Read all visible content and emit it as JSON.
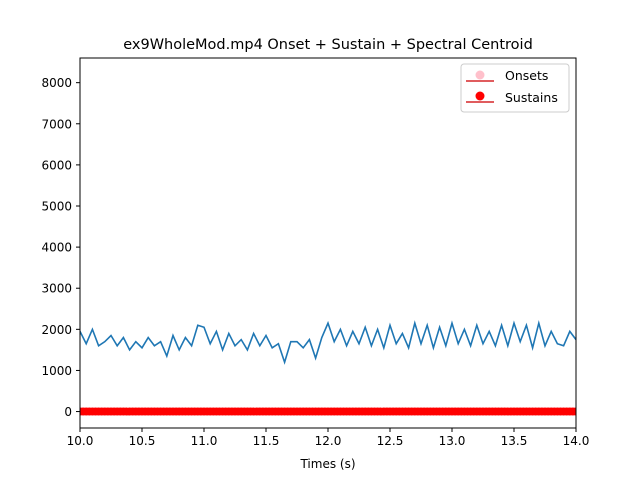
{
  "chart_data": {
    "type": "line",
    "title": "ex9WholeMod.mp4 Onset + Sustain + Spectral Centroid",
    "xlabel": "Times (s)",
    "ylabel": "",
    "xlim": [
      10.0,
      14.0
    ],
    "ylim": [
      -400,
      8600
    ],
    "x_ticks": [
      "10.0",
      "10.5",
      "11.0",
      "11.5",
      "12.0",
      "12.5",
      "13.0",
      "13.5",
      "14.0"
    ],
    "y_ticks": [
      "0",
      "1000",
      "2000",
      "3000",
      "4000",
      "5000",
      "6000",
      "7000",
      "8000"
    ],
    "x_tick_values": [
      10.0,
      10.5,
      11.0,
      11.5,
      12.0,
      12.5,
      13.0,
      13.5,
      14.0
    ],
    "y_tick_values": [
      0,
      1000,
      2000,
      3000,
      4000,
      5000,
      6000,
      7000,
      8000
    ],
    "grid": false,
    "legend_position": "top-right",
    "legend": [
      {
        "label": "Onsets",
        "color": "#ffc0cb",
        "marker": "circle-stem"
      },
      {
        "label": "Sustains",
        "color": "#ff0000",
        "marker": "circle-stem"
      }
    ],
    "series": [
      {
        "type": "line",
        "color": "#1f77b4",
        "x": [
          10.0,
          10.05,
          10.1,
          10.15,
          10.2,
          10.25,
          10.3,
          10.35,
          10.4,
          10.45,
          10.5,
          10.55,
          10.6,
          10.65,
          10.7,
          10.75,
          10.8,
          10.85,
          10.9,
          10.95,
          11.0,
          11.05,
          11.1,
          11.15,
          11.2,
          11.25,
          11.3,
          11.35,
          11.4,
          11.45,
          11.5,
          11.55,
          11.6,
          11.65,
          11.7,
          11.75,
          11.8,
          11.85,
          11.9,
          11.95,
          12.0,
          12.05,
          12.1,
          12.15,
          12.2,
          12.25,
          12.3,
          12.35,
          12.4,
          12.45,
          12.5,
          12.55,
          12.6,
          12.65,
          12.7,
          12.75,
          12.8,
          12.85,
          12.9,
          12.95,
          13.0,
          13.05,
          13.1,
          13.15,
          13.2,
          13.25,
          13.3,
          13.35,
          13.4,
          13.45,
          13.5,
          13.55,
          13.6,
          13.65,
          13.7,
          13.75,
          13.8,
          13.85,
          13.9,
          13.95,
          14.0
        ],
        "y": [
          1950,
          1650,
          2000,
          1600,
          1700,
          1850,
          1600,
          1800,
          1500,
          1700,
          1550,
          1800,
          1600,
          1700,
          1350,
          1850,
          1500,
          1800,
          1600,
          2100,
          2050,
          1650,
          1950,
          1500,
          1900,
          1600,
          1750,
          1500,
          1900,
          1600,
          1850,
          1550,
          1650,
          1200,
          1700,
          1700,
          1550,
          1750,
          1300,
          1800,
          2150,
          1700,
          2000,
          1600,
          1950,
          1650,
          2050,
          1600,
          2000,
          1550,
          2100,
          1650,
          1900,
          1550,
          2150,
          1650,
          2100,
          1550,
          2050,
          1600,
          2150,
          1650,
          2000,
          1600,
          2100,
          1650,
          1950,
          1600,
          2100,
          1600,
          2150,
          1700,
          2100,
          1550,
          2150,
          1600,
          1950,
          1650,
          1600,
          1950,
          1750
        ]
      },
      {
        "type": "stem",
        "name": "Onsets",
        "color": "#ffc0cb",
        "x_start": 10.0,
        "x_end": 14.0,
        "x_step": 0.025,
        "value": 0
      },
      {
        "type": "stem",
        "name": "Sustains",
        "color": "#ff0000",
        "x_start": 10.0,
        "x_end": 14.0,
        "x_step": 0.025,
        "value": 0
      }
    ]
  }
}
